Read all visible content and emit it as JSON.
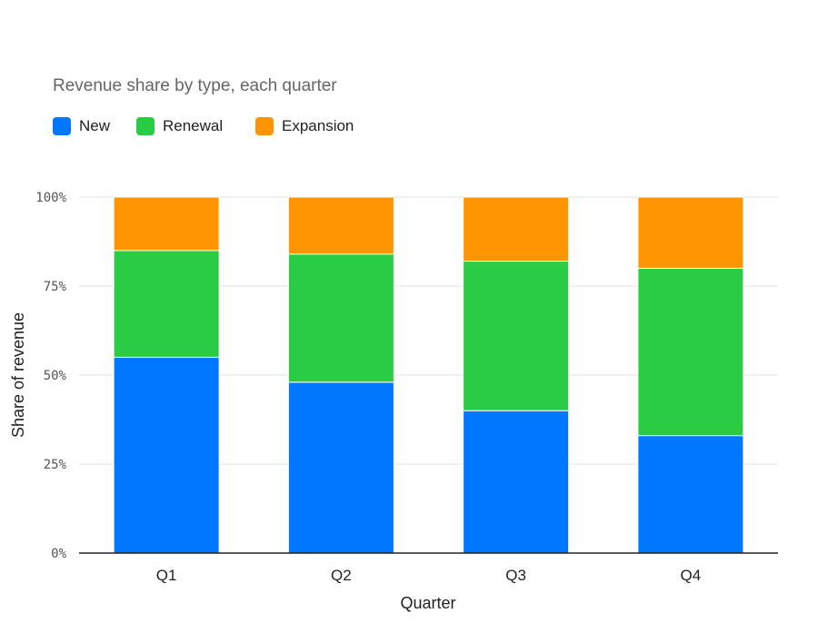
{
  "chart_data": {
    "type": "bar",
    "stacked": true,
    "subtitle": "Revenue share by type, each quarter",
    "xlabel": "Quarter",
    "ylabel": "Share of revenue",
    "categories": [
      "Q1",
      "Q2",
      "Q3",
      "Q4"
    ],
    "series": [
      {
        "name": "New",
        "color": "#0077ff",
        "values": [
          55,
          48,
          40,
          33
        ]
      },
      {
        "name": "Renewal",
        "color": "#2acc44",
        "values": [
          30,
          36,
          42,
          47
        ]
      },
      {
        "name": "Expansion",
        "color": "#ff9500",
        "values": [
          15,
          16,
          18,
          20
        ]
      }
    ],
    "ylim": [
      0,
      100
    ],
    "yticks": [
      0,
      25,
      50,
      75,
      100
    ],
    "ytick_labels": [
      "0%",
      "25%",
      "50%",
      "75%",
      "100%"
    ],
    "grid": true,
    "legend_position": "top-left"
  }
}
